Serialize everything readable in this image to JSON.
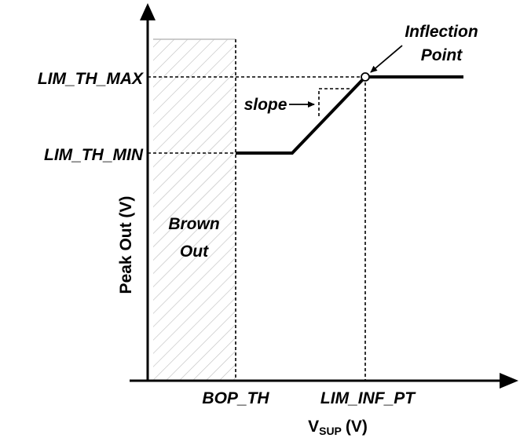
{
  "y_axis": {
    "label": "Peak Out (V)",
    "ticks": [
      "LIM_TH_MAX",
      "LIM_TH_MIN"
    ]
  },
  "x_axis": {
    "label": {
      "main": "V",
      "subscript": "SUP",
      "unit": "(V)"
    },
    "ticks": [
      "BOP_TH",
      "LIM_INF_PT"
    ]
  },
  "region": {
    "lines": [
      "Brown",
      "Out"
    ]
  },
  "annotations": {
    "slope": "slope",
    "inflection": [
      "Inflection",
      "Point"
    ]
  }
}
